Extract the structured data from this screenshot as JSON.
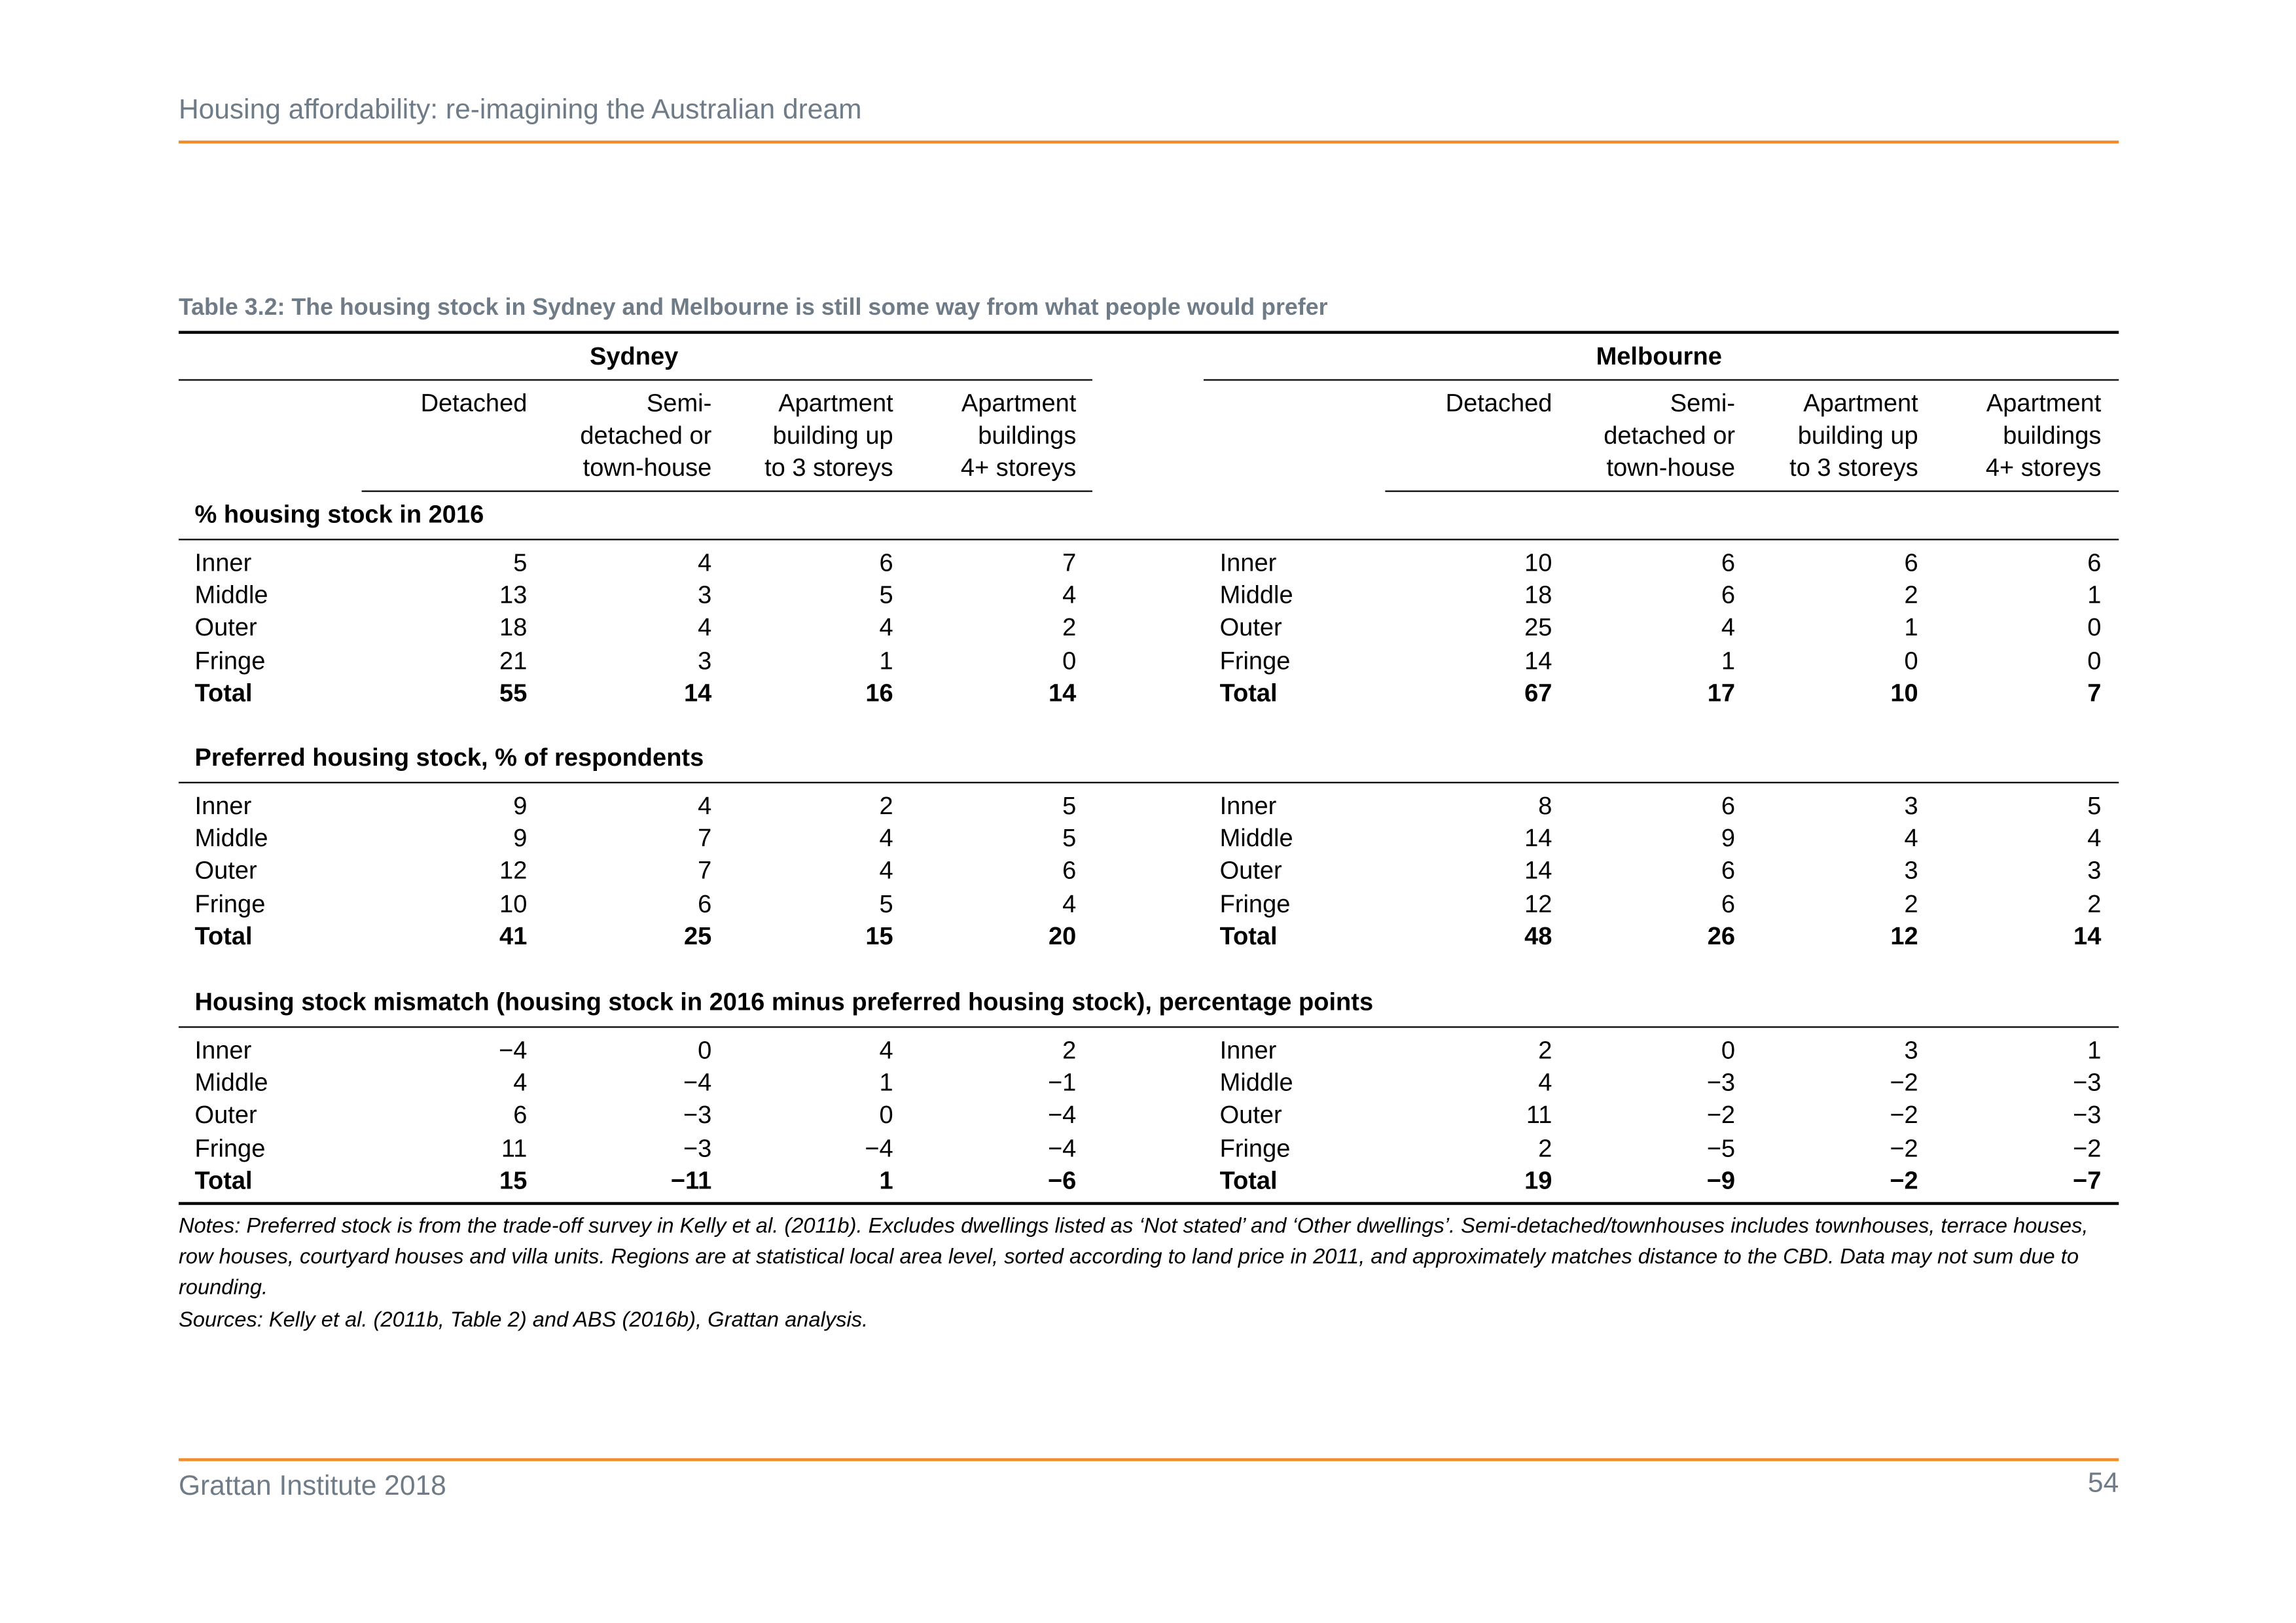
{
  "header": {
    "title": "Housing affordability: re-imagining the Australian dream"
  },
  "table": {
    "title": "Table 3.2: The housing stock in Sydney and Melbourne is still some way from what people would prefer",
    "cities": [
      "Sydney",
      "Melbourne"
    ],
    "columns": [
      [
        "Detached"
      ],
      [
        "Semi-",
        "detached or",
        "town-house"
      ],
      [
        "Apartment",
        "building up",
        "to 3 storeys"
      ],
      [
        "Apartment",
        "buildings",
        "4+ storeys"
      ]
    ],
    "sections": [
      {
        "title": "% housing stock in 2016",
        "rows": [
          {
            "label": "Inner",
            "sydney": [
              "5",
              "4",
              "6",
              "7"
            ],
            "melbourne": [
              "10",
              "6",
              "6",
              "6"
            ]
          },
          {
            "label": "Middle",
            "sydney": [
              "13",
              "3",
              "5",
              "4"
            ],
            "melbourne": [
              "18",
              "6",
              "2",
              "1"
            ]
          },
          {
            "label": "Outer",
            "sydney": [
              "18",
              "4",
              "4",
              "2"
            ],
            "melbourne": [
              "25",
              "4",
              "1",
              "0"
            ]
          },
          {
            "label": "Fringe",
            "sydney": [
              "21",
              "3",
              "1",
              "0"
            ],
            "melbourne": [
              "14",
              "1",
              "0",
              "0"
            ]
          },
          {
            "label": "Total",
            "sydney": [
              "55",
              "14",
              "16",
              "14"
            ],
            "melbourne": [
              "67",
              "17",
              "10",
              "7"
            ]
          }
        ]
      },
      {
        "title": "Preferred housing stock, % of respondents",
        "rows": [
          {
            "label": "Inner",
            "sydney": [
              "9",
              "4",
              "2",
              "5"
            ],
            "melbourne": [
              "8",
              "6",
              "3",
              "5"
            ]
          },
          {
            "label": "Middle",
            "sydney": [
              "9",
              "7",
              "4",
              "5"
            ],
            "melbourne": [
              "14",
              "9",
              "4",
              "4"
            ]
          },
          {
            "label": "Outer",
            "sydney": [
              "12",
              "7",
              "4",
              "6"
            ],
            "melbourne": [
              "14",
              "6",
              "3",
              "3"
            ]
          },
          {
            "label": "Fringe",
            "sydney": [
              "10",
              "6",
              "5",
              "4"
            ],
            "melbourne": [
              "12",
              "6",
              "2",
              "2"
            ]
          },
          {
            "label": "Total",
            "sydney": [
              "41",
              "25",
              "15",
              "20"
            ],
            "melbourne": [
              "48",
              "26",
              "12",
              "14"
            ]
          }
        ]
      },
      {
        "title": "Housing stock mismatch (housing stock in 2016 minus preferred housing stock), percentage points",
        "rows": [
          {
            "label": "Inner",
            "sydney": [
              "−4",
              "0",
              "4",
              "2"
            ],
            "melbourne": [
              "2",
              "0",
              "3",
              "1"
            ]
          },
          {
            "label": "Middle",
            "sydney": [
              "4",
              "−4",
              "1",
              "−1"
            ],
            "melbourne": [
              "4",
              "−3",
              "−2",
              "−3"
            ]
          },
          {
            "label": "Outer",
            "sydney": [
              "6",
              "−3",
              "0",
              "−4"
            ],
            "melbourne": [
              "11",
              "−2",
              "−2",
              "−3"
            ]
          },
          {
            "label": "Fringe",
            "sydney": [
              "11",
              "−3",
              "−4",
              "−4"
            ],
            "melbourne": [
              "2",
              "−5",
              "−2",
              "−2"
            ]
          },
          {
            "label": "Total",
            "sydney": [
              "15",
              "−11",
              "1",
              "−6"
            ],
            "melbourne": [
              "19",
              "−9",
              "−2",
              "−7"
            ]
          }
        ]
      }
    ],
    "notes": "Notes: Preferred stock is from the trade-off survey in Kelly et al. (2011b). Excludes dwellings listed as ‘Not stated’ and ‘Other dwellings’. Semi-detached/townhouses includes townhouses, terrace houses, row houses, courtyard houses and villa units. Regions are at statistical local area level, sorted according to land price in 2011, and approximately matches distance to the CBD. Data may not sum due to rounding.",
    "sources": "Sources: Kelly et al. (2011b, Table 2) and ABS (2016b), Grattan analysis."
  },
  "footer": {
    "left": "Grattan Institute 2018",
    "page": "54"
  }
}
